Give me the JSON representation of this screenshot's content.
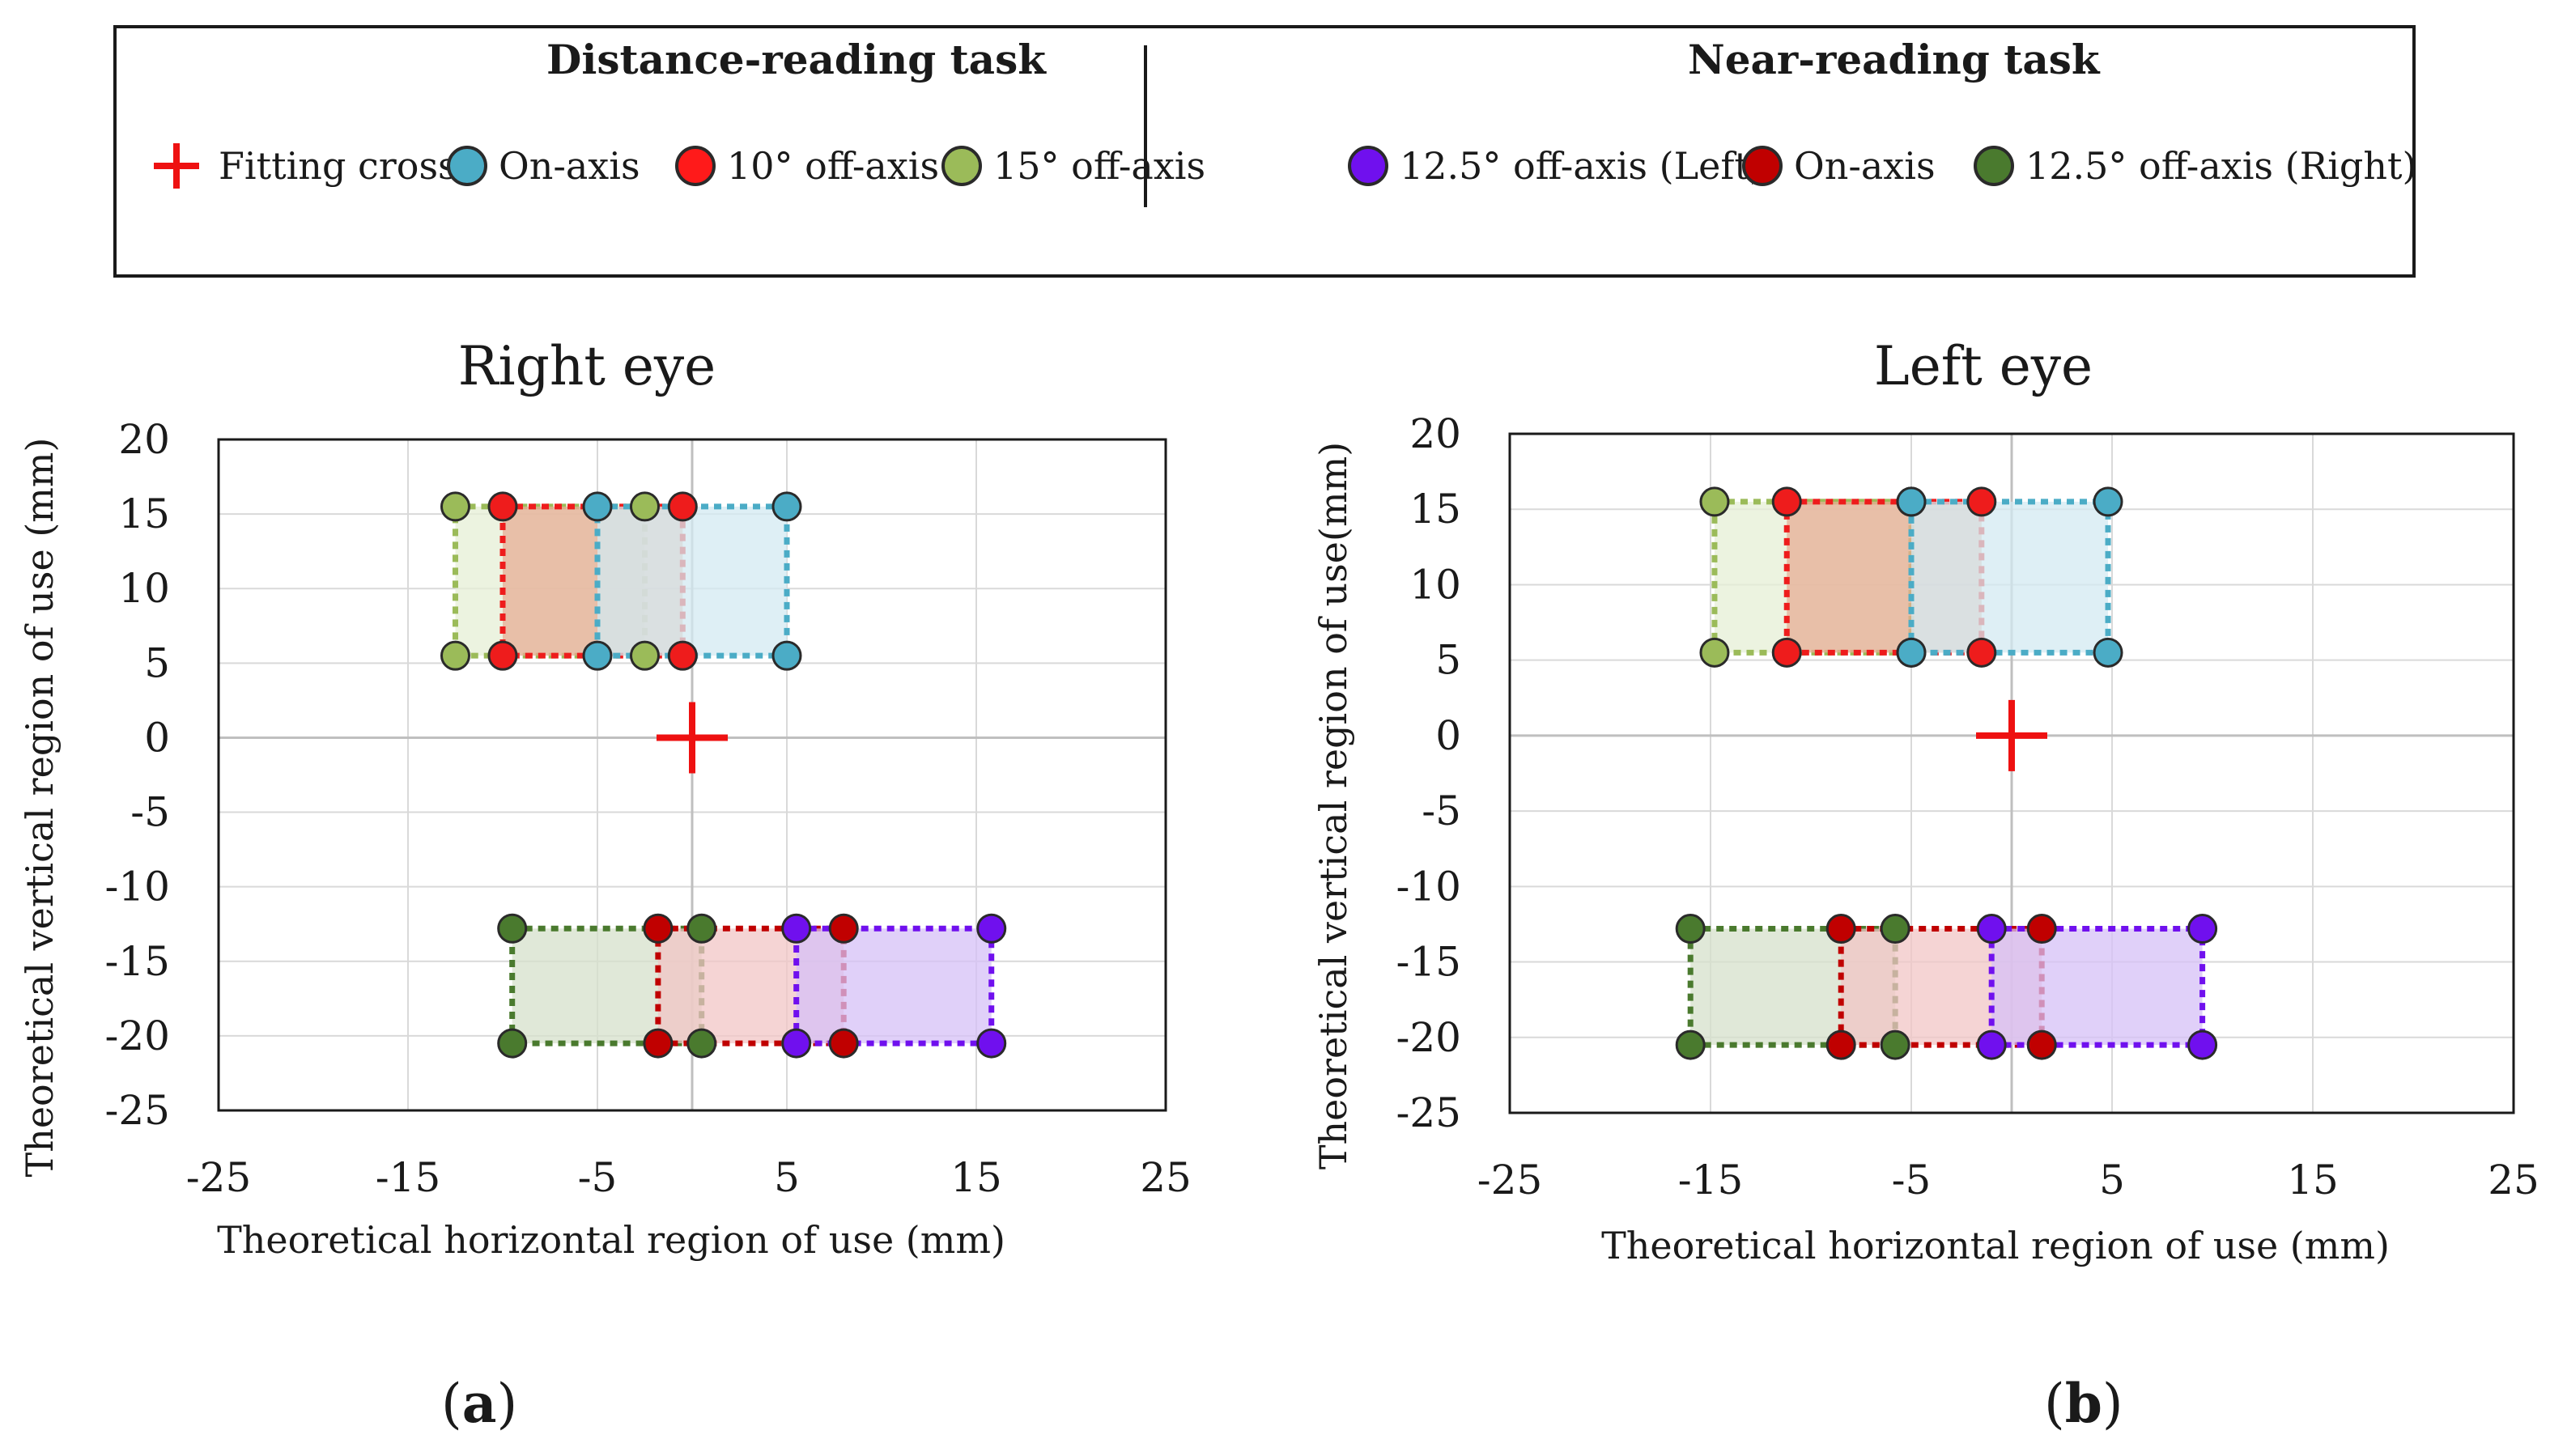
{
  "legend": {
    "distance_title": "Distance-reading task",
    "near_title": "Near-reading task",
    "items": [
      {
        "label": "Fitting cross",
        "marker": "cross",
        "color": "#ee1111"
      },
      {
        "label": "On-axis",
        "marker": "dot",
        "color": "#4bacc6"
      },
      {
        "label": "10° off-axis",
        "marker": "dot",
        "color": "#ff1a1a"
      },
      {
        "label": "15° off-axis",
        "marker": "dot",
        "color": "#9bbb59"
      },
      {
        "label": "12.5° off-axis (Left)",
        "marker": "dot",
        "color": "#7010ee"
      },
      {
        "label": "On-axis",
        "marker": "dot",
        "color": "#c00000"
      },
      {
        "label": "12.5° off-axis (Right)",
        "marker": "dot",
        "color": "#4a7a2e"
      }
    ]
  },
  "panel_labels": {
    "a": {
      "open": "(",
      "letter": "a",
      "close": ")"
    },
    "b": {
      "open": "(",
      "letter": "b",
      "close": ")"
    }
  },
  "chart_data": [
    {
      "type": "scatter",
      "title": "Right eye",
      "xlabel": "Theoretical horizontal region of use (mm)",
      "ylabel": "Theoretical vertical region of use (mm)",
      "xlim": [
        -25,
        25
      ],
      "ylim": [
        -25,
        20
      ],
      "x_ticks": [
        -25,
        -15,
        -5,
        5,
        15,
        25
      ],
      "y_ticks": [
        20,
        15,
        10,
        5,
        0,
        -5,
        -10,
        -15,
        -20,
        -25
      ],
      "grid": true,
      "fitting_cross": [
        0,
        0
      ],
      "series": [
        {
          "name": "15° off-axis",
          "task": "distance",
          "color": "#9bbb59",
          "fill": "#e6efd6",
          "x": [
            -12.5,
            -2.5
          ],
          "y": [
            5.5,
            15.5
          ]
        },
        {
          "name": "10° off-axis",
          "task": "distance",
          "color": "#ee1c1c",
          "fill": "#e7ad95",
          "x": [
            -10,
            -0.5
          ],
          "y": [
            5.5,
            15.5
          ]
        },
        {
          "name": "On-axis",
          "task": "distance",
          "color": "#4bacc6",
          "fill": "#d3eaf1",
          "x": [
            -5,
            5
          ],
          "y": [
            5.5,
            15.5
          ]
        },
        {
          "name": "12.5° off-axis (Right)",
          "task": "near",
          "color": "#4a7a2e",
          "fill": "#d6e0cb",
          "x": [
            -9.5,
            0.5
          ],
          "y": [
            -20.5,
            -12.8
          ]
        },
        {
          "name": "On-axis",
          "task": "near",
          "color": "#c00000",
          "fill": "#f2c6c6",
          "x": [
            -1.8,
            8
          ],
          "y": [
            -20.5,
            -12.8
          ]
        },
        {
          "name": "12.5° off-axis (Left)",
          "task": "near",
          "color": "#7010ee",
          "fill": "#d6c0f7",
          "x": [
            5.5,
            15.8
          ],
          "y": [
            -20.5,
            -12.8
          ]
        }
      ]
    },
    {
      "type": "scatter",
      "title": "Left eye",
      "xlabel": "Theoretical horizontal region of use (mm)",
      "ylabel": "Theoretical vertical region of use(mm)",
      "xlim": [
        -25,
        25
      ],
      "ylim": [
        -25,
        20
      ],
      "x_ticks": [
        -25,
        -15,
        -5,
        5,
        15,
        25
      ],
      "y_ticks": [
        20,
        15,
        10,
        5,
        0,
        -5,
        -10,
        -15,
        -20,
        -25
      ],
      "grid": true,
      "fitting_cross": [
        0,
        0
      ],
      "series": [
        {
          "name": "15° off-axis",
          "task": "distance",
          "color": "#9bbb59",
          "fill": "#e6efd6",
          "x": [
            -14.8,
            -5
          ],
          "y": [
            5.5,
            15.5
          ]
        },
        {
          "name": "10° off-axis",
          "task": "distance",
          "color": "#ee1c1c",
          "fill": "#e7ad95",
          "x": [
            -11.2,
            -1.5
          ],
          "y": [
            5.5,
            15.5
          ]
        },
        {
          "name": "On-axis",
          "task": "distance",
          "color": "#4bacc6",
          "fill": "#d3eaf1",
          "x": [
            -5,
            4.8
          ],
          "y": [
            5.5,
            15.5
          ]
        },
        {
          "name": "12.5° off-axis (Right)",
          "task": "near",
          "color": "#4a7a2e",
          "fill": "#d6e0cb",
          "x": [
            -16,
            -5.8
          ],
          "y": [
            -20.5,
            -12.8
          ]
        },
        {
          "name": "On-axis",
          "task": "near",
          "color": "#c00000",
          "fill": "#f2c6c6",
          "x": [
            -8.5,
            1.5
          ],
          "y": [
            -20.5,
            -12.8
          ]
        },
        {
          "name": "12.5° off-axis (Left)",
          "task": "near",
          "color": "#7010ee",
          "fill": "#d6c0f7",
          "x": [
            -1,
            9.5
          ],
          "y": [
            -20.5,
            -12.8
          ]
        }
      ]
    }
  ]
}
